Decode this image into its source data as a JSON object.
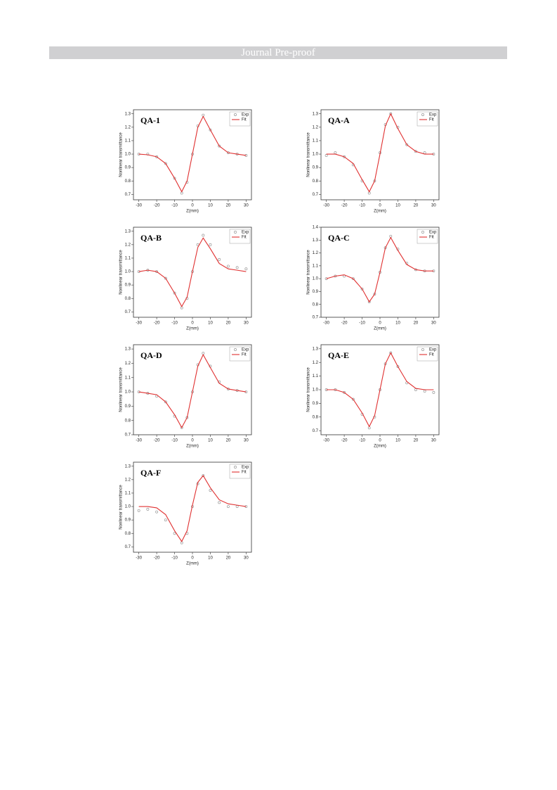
{
  "header": {
    "title": "Journal Pre-proof"
  },
  "chart_data": [
    {
      "type": "line",
      "title": "QA-1",
      "xlabel": "Z(mm)",
      "ylabel": "Nonlinear transmittance",
      "x": [
        -30,
        -25,
        -20,
        -15,
        -10,
        -6,
        -3,
        0,
        3,
        6,
        10,
        15,
        20,
        25,
        30
      ],
      "series": [
        {
          "name": "Exp",
          "color": "#999999",
          "style": "markers",
          "values": [
            1.0,
            1.0,
            0.98,
            0.93,
            0.82,
            0.71,
            0.79,
            1.0,
            1.21,
            1.29,
            1.18,
            1.06,
            1.01,
            1.0,
            0.99
          ]
        },
        {
          "name": "Fit",
          "color": "#e03030",
          "style": "line",
          "values": [
            1.0,
            0.995,
            0.98,
            0.93,
            0.82,
            0.72,
            0.8,
            1.0,
            1.2,
            1.28,
            1.18,
            1.06,
            1.01,
            1.0,
            0.99
          ]
        }
      ],
      "xlim": [
        -33,
        33
      ],
      "xticks": [
        -30,
        -20,
        -10,
        0,
        10,
        20,
        30
      ],
      "ylim": [
        0.66,
        1.33
      ],
      "yticks": [
        0.7,
        0.8,
        0.9,
        {
          "value": 1,
          "label": "1.0"
        },
        1.1,
        1.2,
        1.3
      ]
    },
    {
      "type": "line",
      "title": "QA-A",
      "xlabel": "Z(mm)",
      "ylabel": "Nonlinear transmittance",
      "x": [
        -30,
        -25,
        -20,
        -15,
        -10,
        -6,
        -3,
        0,
        3,
        6,
        10,
        15,
        20,
        25,
        30
      ],
      "series": [
        {
          "name": "Exp",
          "color": "#999999",
          "style": "markers",
          "values": [
            0.99,
            1.01,
            0.98,
            0.92,
            0.8,
            0.71,
            0.8,
            1.01,
            1.22,
            1.3,
            1.2,
            1.07,
            1.02,
            1.01,
            1.0
          ]
        },
        {
          "name": "Fit",
          "color": "#e03030",
          "style": "line",
          "values": [
            1.0,
            1.0,
            0.98,
            0.93,
            0.81,
            0.72,
            0.8,
            1.0,
            1.21,
            1.3,
            1.19,
            1.07,
            1.02,
            1.0,
            1.0
          ]
        }
      ],
      "xlim": [
        -33,
        33
      ],
      "xticks": [
        -30,
        -20,
        -10,
        0,
        10,
        20,
        30
      ],
      "ylim": [
        0.66,
        1.33
      ],
      "yticks": [
        0.7,
        0.8,
        0.9,
        {
          "value": 1,
          "label": "1.0"
        },
        1.1,
        1.2,
        1.3
      ]
    },
    {
      "type": "line",
      "title": "QA-B",
      "xlabel": "Z(mm)",
      "ylabel": "Nonlinear transmittance",
      "x": [
        -30,
        -25,
        -20,
        -15,
        -10,
        -6,
        -3,
        0,
        3,
        6,
        10,
        15,
        20,
        25,
        30
      ],
      "series": [
        {
          "name": "Exp",
          "color": "#999999",
          "style": "markers",
          "values": [
            1.0,
            1.01,
            1.0,
            0.95,
            0.84,
            0.73,
            0.8,
            1.0,
            1.2,
            1.27,
            1.2,
            1.09,
            1.04,
            1.03,
            1.02
          ]
        },
        {
          "name": "Fit",
          "color": "#e03030",
          "style": "line",
          "values": [
            1.0,
            1.01,
            1.0,
            0.95,
            0.84,
            0.74,
            0.81,
            1.0,
            1.18,
            1.25,
            1.17,
            1.06,
            1.02,
            1.01,
            1.0
          ]
        }
      ],
      "xlim": [
        -33,
        33
      ],
      "xticks": [
        -30,
        -20,
        -10,
        0,
        10,
        20,
        30
      ],
      "ylim": [
        0.66,
        1.33
      ],
      "yticks": [
        0.7,
        0.8,
        0.9,
        {
          "value": 1,
          "label": "1.0"
        },
        1.1,
        1.2,
        1.3
      ]
    },
    {
      "type": "line",
      "title": "QA-C",
      "xlabel": "Z(mm)",
      "ylabel": "Nonlinear transmittance",
      "x": [
        -30,
        -25,
        -20,
        -15,
        -10,
        -6,
        -3,
        0,
        3,
        6,
        10,
        15,
        20,
        25,
        30
      ],
      "series": [
        {
          "name": "Exp",
          "color": "#999999",
          "style": "markers",
          "values": [
            1.0,
            1.02,
            1.02,
            1.0,
            0.92,
            0.82,
            0.88,
            1.05,
            1.24,
            1.33,
            1.23,
            1.12,
            1.07,
            1.06,
            1.06
          ]
        },
        {
          "name": "Fit",
          "color": "#e03030",
          "style": "line",
          "values": [
            1.0,
            1.02,
            1.03,
            1.0,
            0.92,
            0.82,
            0.88,
            1.05,
            1.24,
            1.32,
            1.22,
            1.11,
            1.07,
            1.06,
            1.06
          ]
        }
      ],
      "xlim": [
        -33,
        33
      ],
      "xticks": [
        -30,
        -20,
        -10,
        0,
        10,
        20,
        30
      ],
      "ylim": [
        0.7,
        1.4
      ],
      "yticks": [
        0.7,
        0.8,
        0.9,
        {
          "value": 1,
          "label": "1.0"
        },
        1.1,
        1.2,
        1.3,
        1.4
      ]
    },
    {
      "type": "line",
      "title": "QA-D",
      "xlabel": "Z(mm)",
      "ylabel": "Nonlinear transmittance",
      "x": [
        -30,
        -25,
        -20,
        -15,
        -10,
        -6,
        -3,
        0,
        3,
        6,
        10,
        15,
        20,
        25,
        30
      ],
      "series": [
        {
          "name": "Exp",
          "color": "#999999",
          "style": "markers",
          "values": [
            1.0,
            0.99,
            0.97,
            0.93,
            0.83,
            0.75,
            0.82,
            1.0,
            1.19,
            1.27,
            1.18,
            1.07,
            1.02,
            1.01,
            1.0
          ]
        },
        {
          "name": "Fit",
          "color": "#e03030",
          "style": "line",
          "values": [
            1.0,
            0.99,
            0.98,
            0.93,
            0.84,
            0.75,
            0.82,
            1.0,
            1.18,
            1.26,
            1.17,
            1.06,
            1.02,
            1.01,
            1.0
          ]
        }
      ],
      "xlim": [
        -33,
        33
      ],
      "xticks": [
        -30,
        -20,
        -10,
        0,
        10,
        20,
        30
      ],
      "ylim": [
        0.7,
        1.33
      ],
      "yticks": [
        0.7,
        0.8,
        0.9,
        {
          "value": 1,
          "label": "1.0"
        },
        1.1,
        1.2,
        1.3
      ]
    },
    {
      "type": "line",
      "title": "QA-E",
      "xlabel": "Z(mm)",
      "ylabel": "Nonlinear transmittance",
      "x": [
        -30,
        -25,
        -20,
        -15,
        -10,
        -6,
        -3,
        0,
        3,
        6,
        10,
        15,
        20,
        25,
        30
      ],
      "series": [
        {
          "name": "Exp",
          "color": "#999999",
          "style": "markers",
          "values": [
            1.0,
            1.0,
            0.98,
            0.93,
            0.82,
            0.72,
            0.8,
            1.0,
            1.19,
            1.27,
            1.17,
            1.05,
            1.0,
            0.99,
            0.98
          ]
        },
        {
          "name": "Fit",
          "color": "#e03030",
          "style": "line",
          "values": [
            1.0,
            1.0,
            0.98,
            0.93,
            0.83,
            0.73,
            0.81,
            1.0,
            1.19,
            1.27,
            1.17,
            1.06,
            1.01,
            1.0,
            1.0
          ]
        }
      ],
      "xlim": [
        -33,
        33
      ],
      "xticks": [
        -30,
        -20,
        -10,
        0,
        10,
        20,
        30
      ],
      "ylim": [
        0.67,
        1.33
      ],
      "yticks": [
        0.7,
        0.8,
        0.9,
        {
          "value": 1,
          "label": "1.0"
        },
        1.1,
        1.2,
        1.3
      ]
    },
    {
      "type": "line",
      "title": "QA-F",
      "xlabel": "Z(mm)",
      "ylabel": "Nonlinear transmittance",
      "x": [
        -30,
        -25,
        -20,
        -15,
        -10,
        -6,
        -3,
        0,
        3,
        6,
        10,
        15,
        20,
        25,
        30
      ],
      "series": [
        {
          "name": "Exp",
          "color": "#999999",
          "style": "markers",
          "values": [
            0.97,
            0.98,
            0.96,
            0.9,
            0.8,
            0.73,
            0.8,
            1.0,
            1.17,
            1.23,
            1.12,
            1.03,
            1.0,
            1.0,
            1.0
          ]
        },
        {
          "name": "Fit",
          "color": "#e03030",
          "style": "line",
          "values": [
            1.0,
            1.0,
            0.99,
            0.94,
            0.82,
            0.74,
            0.82,
            1.01,
            1.18,
            1.23,
            1.14,
            1.05,
            1.02,
            1.01,
            1.0
          ]
        }
      ],
      "xlim": [
        -33,
        33
      ],
      "xticks": [
        -30,
        -20,
        -10,
        0,
        10,
        20,
        30
      ],
      "ylim": [
        0.66,
        1.33
      ],
      "yticks": [
        0.7,
        0.8,
        0.9,
        {
          "value": 1,
          "label": "1.0"
        },
        1.1,
        1.2,
        1.3
      ]
    }
  ]
}
